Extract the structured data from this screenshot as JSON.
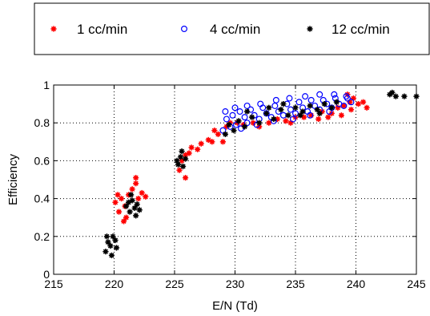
{
  "chart_data": {
    "type": "scatter",
    "xlabel": "E/N (Td)",
    "ylabel": "Efficiency",
    "xlim": [
      215,
      245
    ],
    "ylim": [
      0,
      1
    ],
    "x_ticks": [
      215,
      220,
      225,
      230,
      235,
      240,
      245
    ],
    "y_ticks": [
      0,
      0.2,
      0.4,
      0.6,
      0.8,
      1
    ],
    "y_tick_labels": [
      "0",
      "0.2",
      "0.4",
      "0.6",
      "0.8",
      "1"
    ],
    "grid": true,
    "legend_position": "top, outside plot",
    "series": [
      {
        "name": "1 cc/min",
        "marker": "asterisk",
        "color": "#ff0000",
        "points": [
          [
            220.1,
            0.38
          ],
          [
            220.4,
            0.33
          ],
          [
            220.6,
            0.4
          ],
          [
            220.9,
            0.36
          ],
          [
            221.2,
            0.42
          ],
          [
            221.5,
            0.45
          ],
          [
            221.8,
            0.48
          ],
          [
            222.0,
            0.4
          ],
          [
            222.3,
            0.43
          ],
          [
            221.0,
            0.3
          ],
          [
            221.8,
            0.51
          ],
          [
            220.8,
            0.28
          ],
          [
            222.6,
            0.41
          ],
          [
            220.3,
            0.42
          ],
          [
            225.4,
            0.55
          ],
          [
            225.6,
            0.6
          ],
          [
            225.9,
            0.63
          ],
          [
            225.9,
            0.51
          ],
          [
            226.2,
            0.64
          ],
          [
            226.4,
            0.67
          ],
          [
            226.9,
            0.66
          ],
          [
            227.2,
            0.69
          ],
          [
            227.8,
            0.71
          ],
          [
            228.1,
            0.7
          ],
          [
            228.3,
            0.76
          ],
          [
            228.6,
            0.74
          ],
          [
            229.0,
            0.7
          ],
          [
            229.3,
            0.78
          ],
          [
            229.6,
            0.8
          ],
          [
            230.2,
            0.8
          ],
          [
            230.7,
            0.79
          ],
          [
            231.5,
            0.8
          ],
          [
            232.0,
            0.78
          ],
          [
            232.8,
            0.8
          ],
          [
            233.5,
            0.82
          ],
          [
            234.2,
            0.81
          ],
          [
            235.0,
            0.83
          ],
          [
            235.7,
            0.83
          ],
          [
            236.3,
            0.84
          ],
          [
            237.2,
            0.86
          ],
          [
            238.0,
            0.85
          ],
          [
            238.5,
            0.88
          ],
          [
            239.0,
            0.89
          ],
          [
            239.5,
            0.91
          ],
          [
            239.8,
            0.93
          ],
          [
            240.2,
            0.9
          ],
          [
            240.6,
            0.91
          ],
          [
            239.3,
            0.95
          ],
          [
            238.8,
            0.84
          ],
          [
            237.7,
            0.83
          ],
          [
            236.9,
            0.82
          ],
          [
            239.6,
            0.87
          ],
          [
            240.9,
            0.88
          ],
          [
            234.6,
            0.8
          ]
        ]
      },
      {
        "name": "4 cc/min",
        "marker": "circle",
        "color": "#0000ff",
        "points": [
          [
            229.0,
            0.76
          ],
          [
            229.3,
            0.82
          ],
          [
            229.8,
            0.84
          ],
          [
            230.1,
            0.79
          ],
          [
            230.4,
            0.86
          ],
          [
            230.8,
            0.83
          ],
          [
            231.0,
            0.8
          ],
          [
            231.3,
            0.87
          ],
          [
            231.6,
            0.84
          ],
          [
            232.0,
            0.82
          ],
          [
            232.3,
            0.88
          ],
          [
            232.6,
            0.85
          ],
          [
            233.0,
            0.83
          ],
          [
            233.3,
            0.89
          ],
          [
            233.6,
            0.86
          ],
          [
            234.0,
            0.84
          ],
          [
            234.3,
            0.9
          ],
          [
            234.6,
            0.87
          ],
          [
            235.0,
            0.85
          ],
          [
            235.3,
            0.91
          ],
          [
            235.6,
            0.88
          ],
          [
            236.0,
            0.86
          ],
          [
            236.3,
            0.92
          ],
          [
            236.6,
            0.89
          ],
          [
            237.0,
            0.87
          ],
          [
            237.3,
            0.92
          ],
          [
            237.6,
            0.9
          ],
          [
            238.0,
            0.88
          ],
          [
            238.3,
            0.93
          ],
          [
            238.6,
            0.9
          ],
          [
            239.0,
            0.89
          ],
          [
            239.3,
            0.93
          ],
          [
            239.6,
            0.91
          ],
          [
            230.5,
            0.77
          ],
          [
            231.8,
            0.79
          ],
          [
            233.2,
            0.81
          ],
          [
            234.8,
            0.82
          ],
          [
            236.2,
            0.84
          ],
          [
            237.8,
            0.86
          ],
          [
            229.6,
            0.78
          ],
          [
            230.0,
            0.88
          ],
          [
            231.0,
            0.89
          ],
          [
            232.1,
            0.9
          ],
          [
            233.4,
            0.92
          ],
          [
            234.5,
            0.93
          ],
          [
            235.8,
            0.94
          ],
          [
            237.0,
            0.95
          ],
          [
            238.2,
            0.95
          ],
          [
            239.2,
            0.94
          ],
          [
            229.2,
            0.86
          ]
        ]
      },
      {
        "name": "12 cc/min",
        "marker": "asterisk",
        "color": "#000000",
        "points": [
          [
            219.3,
            0.12
          ],
          [
            219.5,
            0.17
          ],
          [
            219.7,
            0.15
          ],
          [
            219.9,
            0.2
          ],
          [
            220.1,
            0.18
          ],
          [
            220.2,
            0.14
          ],
          [
            219.4,
            0.2
          ],
          [
            219.8,
            0.1
          ],
          [
            221.0,
            0.36
          ],
          [
            221.3,
            0.33
          ],
          [
            221.5,
            0.39
          ],
          [
            221.7,
            0.35
          ],
          [
            221.9,
            0.37
          ],
          [
            222.1,
            0.34
          ],
          [
            221.4,
            0.42
          ],
          [
            221.8,
            0.31
          ],
          [
            221.2,
            0.38
          ],
          [
            225.3,
            0.58
          ],
          [
            225.5,
            0.62
          ],
          [
            225.7,
            0.57
          ],
          [
            225.9,
            0.61
          ],
          [
            225.6,
            0.65
          ],
          [
            225.2,
            0.6
          ],
          [
            229.2,
            0.74
          ],
          [
            229.5,
            0.79
          ],
          [
            229.9,
            0.76
          ],
          [
            230.3,
            0.81
          ],
          [
            230.8,
            0.78
          ],
          [
            231.4,
            0.83
          ],
          [
            232.0,
            0.8
          ],
          [
            232.6,
            0.85
          ],
          [
            233.2,
            0.82
          ],
          [
            233.8,
            0.87
          ],
          [
            234.4,
            0.84
          ],
          [
            235.0,
            0.88
          ],
          [
            235.6,
            0.86
          ],
          [
            236.2,
            0.89
          ],
          [
            236.8,
            0.87
          ],
          [
            237.4,
            0.9
          ],
          [
            238.0,
            0.88
          ],
          [
            238.4,
            0.91
          ],
          [
            234.0,
            0.9
          ],
          [
            235.4,
            0.84
          ],
          [
            237.0,
            0.85
          ],
          [
            231.0,
            0.86
          ],
          [
            232.8,
            0.88
          ],
          [
            242.8,
            0.95
          ],
          [
            243.3,
            0.94
          ],
          [
            244.0,
            0.94
          ],
          [
            243.0,
            0.96
          ],
          [
            245.0,
            0.94
          ]
        ]
      }
    ]
  }
}
